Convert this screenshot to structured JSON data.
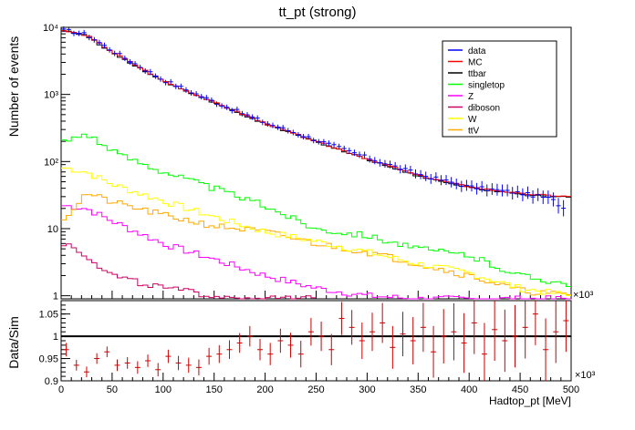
{
  "chart_data": [
    {
      "type": "line",
      "title": "tt_pt (strong)",
      "ylabel": "Number  of  events",
      "xlabel": "",
      "ylog": true,
      "xlim": [
        0,
        500
      ],
      "ylim": [
        0.9,
        10000
      ],
      "x_exponent_label": "×10³",
      "x_ticks": [
        0,
        50,
        100,
        150,
        200,
        250,
        300,
        350,
        400,
        450,
        500
      ],
      "y_tick_labels": [
        {
          "v": 10000,
          "label": "10⁴"
        },
        {
          "v": 1000,
          "label": "10³"
        },
        {
          "v": 100,
          "label": "10²"
        },
        {
          "v": 10,
          "label": "10"
        },
        {
          "v": 1,
          "label": "1"
        }
      ],
      "legend_position": "top-right",
      "legend": [
        {
          "name": "data",
          "color": "#0000ff"
        },
        {
          "name": "MC",
          "color": "#ff0000"
        },
        {
          "name": "ttbar",
          "color": "#000000"
        },
        {
          "name": "singletop",
          "color": "#00ff00"
        },
        {
          "name": "Z",
          "color": "#ff00ff"
        },
        {
          "name": "diboson",
          "color": "#cc0066"
        },
        {
          "name": "W",
          "color": "#ffff00"
        },
        {
          "name": "ttV",
          "color": "#ffaa00"
        }
      ],
      "series": [
        {
          "name": "data",
          "color": "#0000ff",
          "style": "points",
          "x": [
            5,
            25,
            50,
            100,
            150,
            200,
            250,
            300,
            350,
            400,
            450,
            480,
            495
          ],
          "y": [
            9000,
            7800,
            4500,
            1650,
            780,
            380,
            210,
            115,
            65,
            42,
            34,
            28,
            19
          ]
        },
        {
          "name": "MC",
          "color": "#ff0000",
          "style": "step",
          "x": [
            5,
            25,
            50,
            100,
            150,
            200,
            250,
            300,
            350,
            400,
            450,
            500
          ],
          "y": [
            8800,
            7600,
            4300,
            1600,
            760,
            370,
            200,
            110,
            62,
            42,
            33,
            30
          ]
        },
        {
          "name": "ttbar",
          "color": "#000000",
          "style": "step",
          "x": [
            5,
            25,
            50,
            100,
            150,
            200,
            250,
            300,
            350,
            400,
            450,
            500
          ],
          "y": [
            8700,
            7500,
            4200,
            1580,
            750,
            365,
            198,
            108,
            61,
            41,
            32,
            29
          ]
        },
        {
          "name": "singletop",
          "color": "#00ff00",
          "style": "step",
          "x": [
            5,
            25,
            50,
            100,
            150,
            200,
            250,
            300,
            350,
            400,
            450,
            500
          ],
          "y": [
            200,
            270,
            140,
            72,
            40,
            22,
            10,
            8,
            5,
            4,
            2,
            1.5
          ]
        },
        {
          "name": "W",
          "color": "#ffff00",
          "style": "step",
          "x": [
            5,
            25,
            50,
            100,
            150,
            200,
            250,
            300,
            350,
            400,
            450,
            500
          ],
          "y": [
            80,
            70,
            46,
            26,
            15,
            9,
            6.5,
            4.5,
            3,
            2.2,
            1.3,
            1
          ]
        },
        {
          "name": "ttV",
          "color": "#ffaa00",
          "style": "step",
          "x": [
            5,
            25,
            50,
            100,
            150,
            200,
            250,
            300,
            350,
            400,
            450,
            500
          ],
          "y": [
            15,
            34,
            25,
            16,
            11,
            9,
            6,
            4.5,
            3,
            2,
            1.2,
            1
          ]
        },
        {
          "name": "Z",
          "color": "#ff00ff",
          "style": "step",
          "x": [
            5,
            25,
            50,
            100,
            150,
            200,
            250,
            300,
            350,
            400,
            450,
            500
          ],
          "y": [
            22,
            20,
            13,
            6,
            3.5,
            2,
            1.3,
            1,
            0.9,
            0.9,
            0.9,
            0.9
          ]
        },
        {
          "name": "diboson",
          "color": "#cc0066",
          "style": "step",
          "x": [
            5,
            25,
            50,
            100,
            150,
            200,
            250
          ],
          "y": [
            6,
            4,
            2,
            1.3,
            1,
            0.9,
            0.9
          ]
        }
      ]
    },
    {
      "type": "scatter",
      "title": "",
      "ylabel": "Data/Sim",
      "xlabel": "Hadtop_pt [MeV]",
      "xlim": [
        0,
        500
      ],
      "ylim": [
        0.9,
        1.08
      ],
      "x_exponent_label": "×10³",
      "x_ticks": [
        0,
        50,
        100,
        150,
        200,
        250,
        300,
        350,
        400,
        450,
        500
      ],
      "y_tick_labels": [
        {
          "v": 1.05,
          "label": "1.05"
        },
        {
          "v": 1,
          "label": "1"
        },
        {
          "v": 0.95,
          "label": "0.95"
        },
        {
          "v": 0.9,
          "label": "0.9"
        }
      ],
      "reference_line": 1,
      "series": [
        {
          "name": "",
          "color": "#cc0000",
          "x": [
            5,
            15,
            25,
            35,
            45,
            55,
            65,
            75,
            85,
            95,
            105,
            115,
            125,
            135,
            145,
            155,
            165,
            175,
            185,
            195,
            205,
            215,
            225,
            235,
            245,
            255,
            265,
            275,
            285,
            295,
            305,
            315,
            325,
            335,
            345,
            355,
            365,
            375,
            385,
            395,
            405,
            415,
            425,
            435,
            445,
            455,
            465,
            475,
            485,
            495
          ],
          "y": [
            0.97,
            0.935,
            0.92,
            0.95,
            0.965,
            0.935,
            0.94,
            0.93,
            0.945,
            0.925,
            0.955,
            0.94,
            0.935,
            0.93,
            0.955,
            0.96,
            0.97,
            0.985,
            1.0,
            0.97,
            0.96,
            0.99,
            0.98,
            0.96,
            1.01,
            1.0,
            0.97,
            1.04,
            1.02,
            0.99,
            1.01,
            1.03,
            0.975,
            1.005,
            0.99,
            1.02,
            0.965,
            1.0,
            1.01,
            0.985,
            1.03,
            0.96,
            1.015,
            0.99,
            1.0,
            1.02,
            1.05,
            0.97,
            1.01,
            1.035
          ],
          "err": [
            0.015,
            0.012,
            0.012,
            0.012,
            0.012,
            0.013,
            0.013,
            0.014,
            0.014,
            0.015,
            0.015,
            0.016,
            0.017,
            0.018,
            0.019,
            0.02,
            0.021,
            0.022,
            0.023,
            0.024,
            0.025,
            0.027,
            0.028,
            0.03,
            0.031,
            0.033,
            0.035,
            0.037,
            0.039,
            0.041,
            0.043,
            0.045,
            0.048,
            0.05,
            0.053,
            0.055,
            0.058,
            0.061,
            0.064,
            0.067,
            0.07,
            0.07,
            0.07,
            0.07,
            0.07,
            0.07,
            0.07,
            0.07,
            0.07,
            0.07
          ]
        }
      ]
    }
  ]
}
